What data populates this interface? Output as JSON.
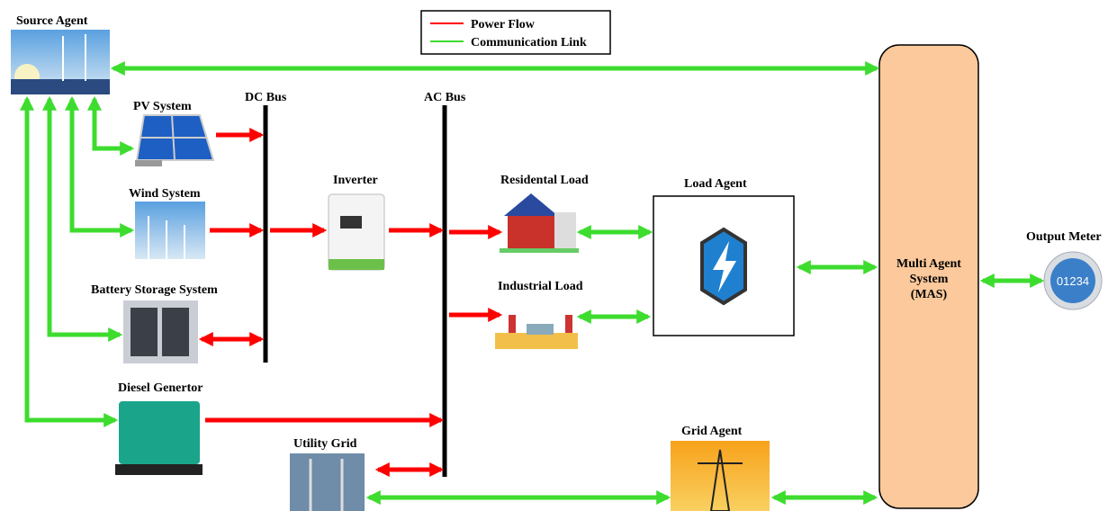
{
  "legend": {
    "power_flow": "Power Flow",
    "communication_link": "Communication Link"
  },
  "source_agent": "Source Agent",
  "pv_system": "PV System",
  "dc_bus": "DC Bus",
  "ac_bus": "AC Bus",
  "wind_system": "Wind System",
  "inverter": "Inverter",
  "residential_load": "Residental Load",
  "load_agent": "Load Agent",
  "output_meter": {
    "label": "Output Meter",
    "display": "01234"
  },
  "battery_storage": "Battery Storage System",
  "industrial_load": "Industrial Load",
  "mas": [
    "Multi Agent",
    "System",
    "(MAS)"
  ],
  "diesel_generator": "Diesel Genertor",
  "utility_grid": "Utility Grid",
  "grid_agent": "Grid Agent"
}
